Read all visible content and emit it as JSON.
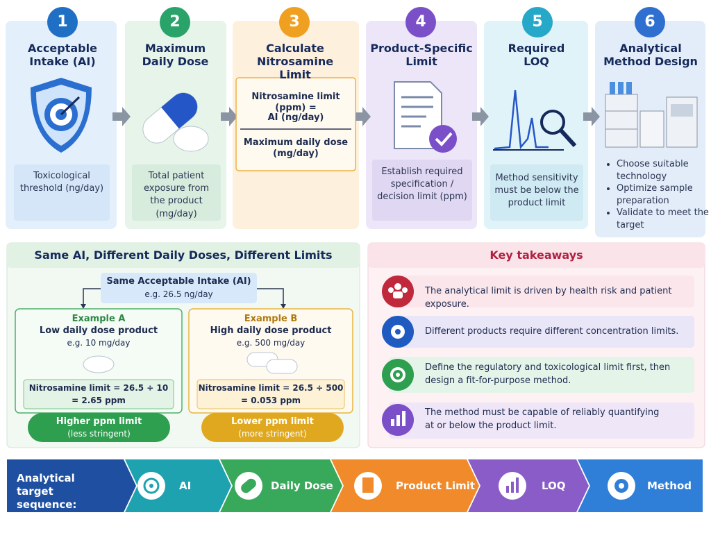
{
  "steps": [
    {
      "number": "1",
      "title": "Acceptable Intake (AI)",
      "description": "Toxicological threshold (ng/day)"
    },
    {
      "number": "2",
      "title": "Maximum Daily Dose",
      "description": "Total patient exposure from the product (mg/day)"
    },
    {
      "number": "3",
      "title": "Calculate Nitrosamine Limit",
      "formula": {
        "left": "Nitrosamine limit (ppm) =",
        "numerator": "AI (ng/day)",
        "denominator": "Maximum daily dose (mg/day)"
      }
    },
    {
      "number": "4",
      "title": "Product-Specific Limit",
      "description": "Establish required specification / decision limit (ppm)"
    },
    {
      "number": "5",
      "title": "Required LOQ",
      "description": "Method sensitivity must be below the product limit"
    },
    {
      "number": "6",
      "title": "Analytical Method Design",
      "bullets": [
        "Choose suitable technology",
        "Optimize sample preparation",
        "Validate to meet the target"
      ]
    }
  ],
  "comparison": {
    "title": "Same AI, Different Daily Doses, Different Limits",
    "shared": {
      "label": "Same Acceptable Intake (AI)",
      "example": "e.g. 26.5 ng/day"
    },
    "examples": [
      {
        "title": "Example A",
        "subtitle": "Low daily dose product",
        "dose": "e.g. 10 mg/day",
        "formula": "Nitrosamine limit = 26.5 ÷ 10",
        "result": "= 2.65 ppm",
        "verdict": "Higher ppm limit",
        "note": "(less stringent)"
      },
      {
        "title": "Example B",
        "subtitle": "High daily dose product",
        "dose": "e.g. 500 mg/day",
        "formula": "Nitrosamine limit = 26.5 ÷ 500",
        "result": "= 0.053 ppm",
        "verdict": "Lower ppm limit",
        "note": "(more stringent)"
      }
    ]
  },
  "takeaways": {
    "title": "Key takeaways",
    "items": [
      "The analytical limit is driven by health risk and patient exposure.",
      "Different products require different concentration limits.",
      "Define the regulatory and toxicological limit first, then design a fit-for-purpose method.",
      "The method must be capable of reliably quantifying at or below the product limit."
    ]
  },
  "sequence": {
    "label": "Analytical target sequence:",
    "steps": [
      "AI",
      "Daily Dose",
      "Product Limit",
      "LOQ",
      "Method"
    ]
  }
}
